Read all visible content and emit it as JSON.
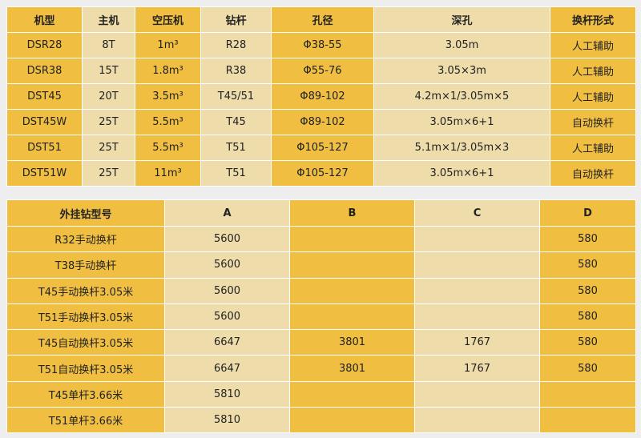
{
  "table1": {
    "headers": [
      "机型",
      "主机",
      "空压机",
      "钻杆",
      "孔径",
      "深孔",
      "换杆形式"
    ],
    "rows": [
      [
        "DSR28",
        "8T",
        "1m³",
        "R28",
        "Φ38-55",
        "3.05m",
        "人工辅助"
      ],
      [
        "DSR38",
        "15T",
        "1.8m³",
        "R38",
        "Φ55-76",
        "3.05×3m",
        "人工辅助"
      ],
      [
        "DST45",
        "20T",
        "3.5m³",
        "T45/51",
        "Φ89-102",
        "4.2m×1/3.05m×5",
        "人工辅助"
      ],
      [
        "DST45W",
        "25T",
        "5.5m³",
        "T45",
        "Φ89-102",
        "3.05m×6+1",
        "自动换杆"
      ],
      [
        "DST51",
        "25T",
        "5.5m³",
        "T51",
        "Φ105-127",
        "5.1m×1/3.05m×3",
        "人工辅助"
      ],
      [
        "DST51W",
        "25T",
        "11m³",
        "T51",
        "Φ105-127",
        "3.05m×6+1",
        "自动换杆"
      ]
    ]
  },
  "table2": {
    "headers": [
      "外挂钻型号",
      "A",
      "B",
      "C",
      "D"
    ],
    "rows": [
      [
        "R32手动换杆",
        "5600",
        "",
        "",
        "580"
      ],
      [
        "T38手动换杆",
        "5600",
        "",
        "",
        "580"
      ],
      [
        "T45手动换杆3.05米",
        "5600",
        "",
        "",
        "580"
      ],
      [
        "T51手动换杆3.05米",
        "5600",
        "",
        "",
        "580"
      ],
      [
        "T45自动换杆3.05米",
        "6647",
        "3801",
        "1767",
        "580"
      ],
      [
        "T51自动换杆3.05米",
        "6647",
        "3801",
        "1767",
        "580"
      ],
      [
        "T45单杆3.66米",
        "5810",
        "",
        "",
        ""
      ],
      [
        "T51单杆3.66米",
        "5810",
        "",
        "",
        ""
      ]
    ]
  },
  "colors": {
    "yellow": "#f0bf42",
    "beige": "#eedcaa",
    "background": "#efeeef"
  }
}
